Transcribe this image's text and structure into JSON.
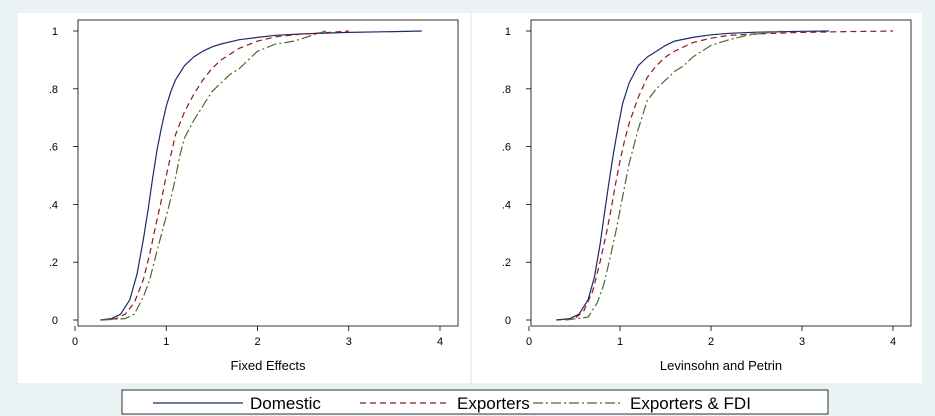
{
  "chart_data": [
    {
      "type": "line",
      "title": "",
      "xlabel": "Fixed Effects",
      "ylabel": "",
      "xlim": [
        0,
        4.2
      ],
      "ylim": [
        0,
        1
      ],
      "xticks": [
        "0",
        "1",
        "2",
        "3",
        "4"
      ],
      "yticks": [
        "0",
        ".2",
        ".4",
        ".6",
        ".8",
        "1"
      ],
      "grid": false,
      "series": [
        {
          "name": "Domestic",
          "x": [
            0.28,
            0.4,
            0.5,
            0.6,
            0.68,
            0.75,
            0.8,
            0.85,
            0.9,
            0.95,
            1.0,
            1.05,
            1.1,
            1.2,
            1.3,
            1.4,
            1.5,
            1.6,
            1.8,
            2.0,
            2.2,
            2.5,
            3.0,
            3.5,
            3.8
          ],
          "y": [
            0,
            0.005,
            0.02,
            0.07,
            0.16,
            0.28,
            0.38,
            0.49,
            0.59,
            0.67,
            0.74,
            0.79,
            0.83,
            0.88,
            0.91,
            0.93,
            0.945,
            0.955,
            0.97,
            0.978,
            0.985,
            0.99,
            0.995,
            0.998,
            1.0
          ]
        },
        {
          "name": "Exporters",
          "x": [
            0.3,
            0.45,
            0.55,
            0.65,
            0.75,
            0.82,
            0.88,
            0.95,
            1.0,
            1.05,
            1.1,
            1.2,
            1.3,
            1.4,
            1.5,
            1.6,
            1.8,
            2.0,
            2.2,
            2.5,
            2.8,
            3.0
          ],
          "y": [
            0,
            0.005,
            0.02,
            0.06,
            0.14,
            0.23,
            0.32,
            0.42,
            0.5,
            0.57,
            0.64,
            0.72,
            0.78,
            0.83,
            0.87,
            0.9,
            0.94,
            0.965,
            0.98,
            0.99,
            0.995,
            1.0
          ]
        },
        {
          "name": "Exporters & FDI",
          "x": [
            0.3,
            0.55,
            0.65,
            0.75,
            0.82,
            0.9,
            0.95,
            1.0,
            1.05,
            1.1,
            1.15,
            1.2,
            1.3,
            1.4,
            1.5,
            1.6,
            1.7,
            1.8,
            2.0,
            2.2,
            2.4,
            2.6,
            2.75
          ],
          "y": [
            0,
            0.005,
            0.02,
            0.08,
            0.14,
            0.24,
            0.3,
            0.36,
            0.42,
            0.49,
            0.57,
            0.63,
            0.69,
            0.74,
            0.79,
            0.82,
            0.85,
            0.87,
            0.93,
            0.955,
            0.965,
            0.985,
            1.0
          ]
        }
      ]
    },
    {
      "type": "line",
      "title": "",
      "xlabel": "Levinsohn and Petrin",
      "ylabel": "",
      "xlim": [
        0,
        4.2
      ],
      "ylim": [
        0,
        1
      ],
      "xticks": [
        "0",
        "1",
        "2",
        "3",
        "4"
      ],
      "yticks": [
        "0",
        ".2",
        ".4",
        ".6",
        ".8",
        "1"
      ],
      "grid": false,
      "series": [
        {
          "name": "Domestic",
          "x": [
            0.3,
            0.45,
            0.55,
            0.65,
            0.72,
            0.78,
            0.83,
            0.88,
            0.93,
            0.98,
            1.03,
            1.1,
            1.2,
            1.3,
            1.4,
            1.5,
            1.6,
            1.8,
            2.0,
            2.2,
            2.5,
            3.0,
            3.3
          ],
          "y": [
            0,
            0.005,
            0.02,
            0.07,
            0.15,
            0.26,
            0.37,
            0.48,
            0.58,
            0.67,
            0.75,
            0.82,
            0.88,
            0.91,
            0.93,
            0.95,
            0.965,
            0.978,
            0.987,
            0.992,
            0.996,
            0.999,
            1.0
          ]
        },
        {
          "name": "Exporters",
          "x": [
            0.3,
            0.5,
            0.6,
            0.7,
            0.78,
            0.85,
            0.9,
            0.95,
            1.0,
            1.05,
            1.1,
            1.2,
            1.3,
            1.4,
            1.5,
            1.6,
            1.8,
            2.0,
            2.2,
            2.5,
            3.0,
            3.5,
            4.0
          ],
          "y": [
            0,
            0.005,
            0.03,
            0.1,
            0.2,
            0.3,
            0.38,
            0.47,
            0.55,
            0.62,
            0.68,
            0.77,
            0.84,
            0.88,
            0.91,
            0.93,
            0.96,
            0.975,
            0.985,
            0.99,
            0.995,
            0.998,
            1.0
          ]
        },
        {
          "name": "Exporters & FDI",
          "x": [
            0.4,
            0.65,
            0.75,
            0.82,
            0.88,
            0.95,
            1.0,
            1.05,
            1.1,
            1.15,
            1.2,
            1.3,
            1.4,
            1.5,
            1.6,
            1.7,
            1.8,
            1.9,
            2.0,
            2.2,
            2.4,
            2.6,
            2.8
          ],
          "y": [
            0,
            0.01,
            0.06,
            0.12,
            0.2,
            0.3,
            0.38,
            0.46,
            0.54,
            0.6,
            0.66,
            0.76,
            0.8,
            0.83,
            0.86,
            0.88,
            0.91,
            0.93,
            0.95,
            0.97,
            0.985,
            0.993,
            1.0
          ]
        }
      ]
    }
  ],
  "legend": {
    "placement": "bottom",
    "entries": [
      {
        "label": "Domestic",
        "color": "#1a2a6c",
        "dash": "solid"
      },
      {
        "label": "Exporters",
        "color": "#8b1a1a",
        "dash": "dash"
      },
      {
        "label": "Exporters & FDI",
        "color": "#4a6b2a",
        "dash": "dash-dot"
      }
    ]
  },
  "colors": {
    "background": "#eaf2f3",
    "plot_background": "#ffffff",
    "domestic": "#1a2a6c",
    "exporters": "#8b1a1a",
    "exporters_fdi": "#4a6b2a"
  }
}
